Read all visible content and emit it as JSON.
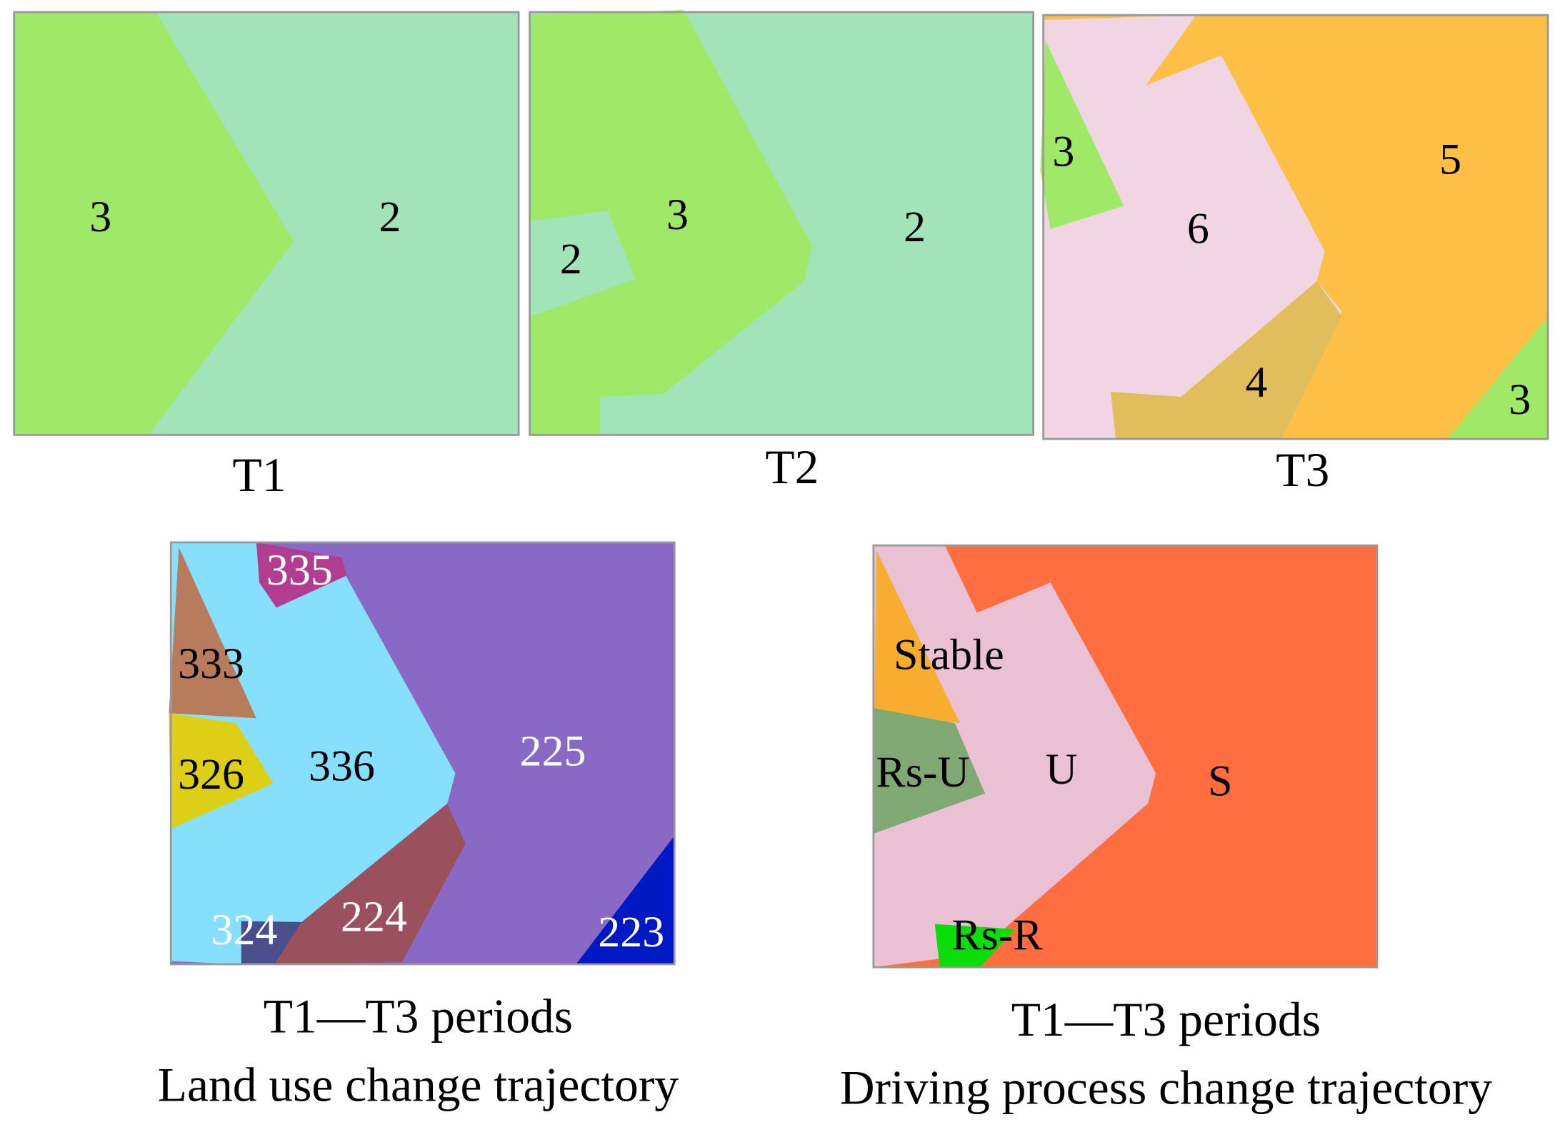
{
  "panels": [
    {
      "caption": "T1",
      "labels": [
        "3",
        "2"
      ]
    },
    {
      "caption": "T2",
      "labels": [
        "2",
        "3",
        "2"
      ]
    },
    {
      "caption": "T3",
      "labels": [
        "3",
        "6",
        "5",
        "4",
        "3"
      ]
    },
    {
      "caption": [
        "T1—T3 periods",
        "Land use change trajectory"
      ],
      "labels": [
        "335",
        "333",
        "326",
        "336",
        "225",
        "224",
        "324",
        "223"
      ]
    },
    {
      "caption": [
        "T1—T3 periods",
        "Driving process change trajectory"
      ],
      "labels": [
        "Stable",
        "Rs-U",
        "U",
        "S",
        "Rs-R"
      ]
    }
  ]
}
